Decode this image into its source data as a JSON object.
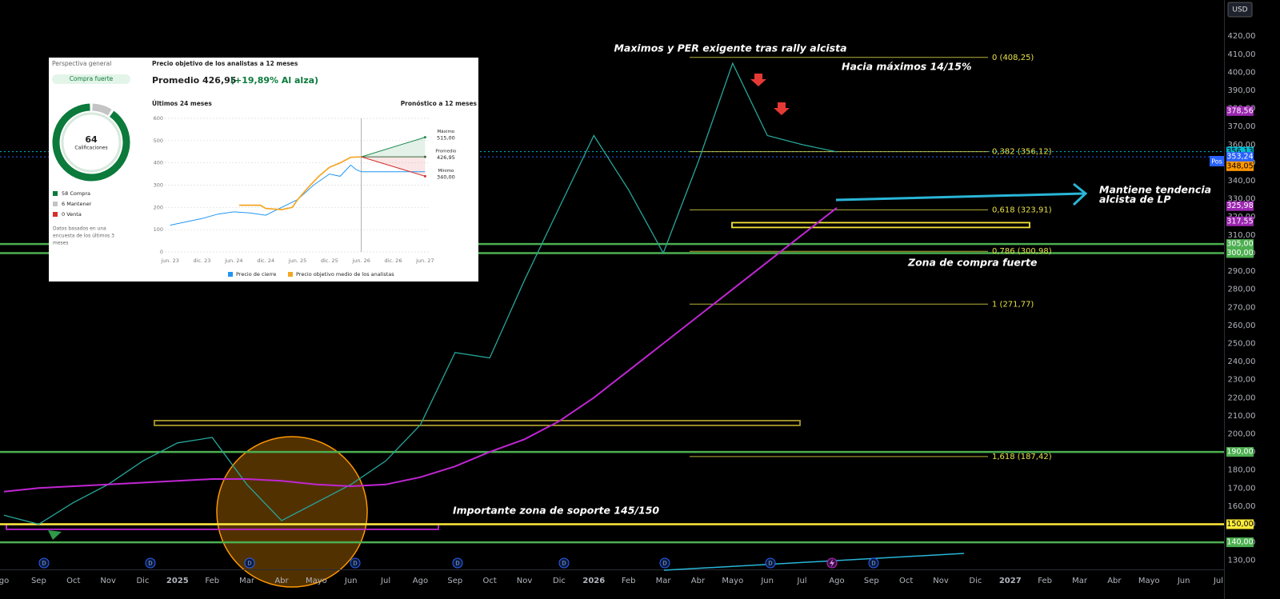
{
  "chart_data": [
    {
      "type": "line",
      "categories": [
        "go",
        "Sep",
        "Oct",
        "Nov",
        "Dic",
        "2025",
        "Feb",
        "Mar",
        "Abr",
        "Mayo",
        "Jun",
        "Jul",
        "Ago",
        "Sep",
        "Oct",
        "Nov",
        "Dic",
        "2026",
        "Feb",
        "Mar",
        "Abr",
        "Mayo",
        "Jun",
        "Jul",
        "Ago",
        "Sep",
        "Oct",
        "Nov",
        "Dic",
        "2027",
        "Feb",
        "Mar",
        "Abr",
        "Mayo",
        "Jun",
        "Jul"
      ],
      "series": [
        {
          "color": "#26a69a",
          "values": [
            155,
            150,
            162,
            172,
            185,
            195,
            198,
            172,
            152,
            162,
            172,
            185,
            205,
            245,
            242,
            285,
            325,
            365,
            335,
            300,
            350,
            405,
            365,
            360,
            356,
            null,
            null,
            null,
            null,
            null,
            null,
            null,
            null,
            null,
            null,
            null
          ]
        },
        {
          "color": "#c026d3",
          "values": [
            168,
            170,
            171,
            172,
            173,
            174,
            175,
            175,
            174,
            172,
            171,
            172,
            176,
            182,
            190,
            197,
            207,
            220,
            235,
            250,
            265,
            280,
            295,
            310,
            325,
            null,
            null,
            null,
            null,
            null,
            null,
            null,
            null,
            null,
            null,
            null
          ]
        }
      ],
      "ylim": [
        125,
        440
      ],
      "yticks": [
        {
          "value": 130,
          "label": "130,00"
        },
        {
          "value": 140,
          "label": "140,00"
        },
        {
          "value": 150,
          "label": "150,00"
        },
        {
          "value": 160,
          "label": "160,00"
        },
        {
          "value": 170,
          "label": "170,00"
        },
        {
          "value": 180,
          "label": "180,00"
        },
        {
          "value": 190,
          "label": "190,00"
        },
        {
          "value": 200,
          "label": "200,00"
        },
        {
          "value": 210,
          "label": "210,00"
        },
        {
          "value": 220,
          "label": "220,00"
        },
        {
          "value": 230,
          "label": "230,00"
        },
        {
          "value": 240,
          "label": "240,00"
        },
        {
          "value": 250,
          "label": "250,00"
        },
        {
          "value": 260,
          "label": "260,00"
        },
        {
          "value": 270,
          "label": "270,00"
        },
        {
          "value": 280,
          "label": "280,00"
        },
        {
          "value": 290,
          "label": "290,00"
        },
        {
          "value": 300,
          "label": "300,00"
        },
        {
          "value": 310,
          "label": "310,00"
        },
        {
          "value": 320,
          "label": "320,00"
        },
        {
          "value": 330,
          "label": "330,00"
        },
        {
          "value": 340,
          "label": "340,00"
        },
        {
          "value": 350,
          "label": "350,00"
        },
        {
          "value": 360,
          "label": "360,00"
        },
        {
          "value": 370,
          "label": "370,00"
        },
        {
          "value": 380,
          "label": "380,00"
        },
        {
          "value": 390,
          "label": "390,00"
        },
        {
          "value": 400,
          "label": "400,00"
        },
        {
          "value": 410,
          "label": "410,00"
        },
        {
          "value": 420,
          "label": "420,00"
        }
      ],
      "grid": false,
      "zones": [
        {
          "value": 206,
          "color": "#a89a2c"
        },
        {
          "value": 148.5,
          "color": "#c026d3"
        },
        {
          "value": 315.5,
          "color": "#f5e63a"
        }
      ],
      "fib": [
        {
          "value": 408.25,
          "label": "0 (408,25)"
        },
        {
          "value": 356.12,
          "label": "0,382 (356,12)"
        },
        {
          "value": 323.91,
          "label": "0,618 (323,91)"
        },
        {
          "value": 300.98,
          "label": "0,786 (300,98)"
        },
        {
          "value": 271.77,
          "label": "1 (271,77)"
        },
        {
          "value": 187.42,
          "label": "1,618 (187,42)"
        }
      ],
      "fib_color": "#e8e04a",
      "tags": [
        {
          "value": 378.56,
          "label": "378,56",
          "color": "#9c27b0",
          "text_color": "#ffffff"
        },
        {
          "value": 356.13,
          "label": "356,13",
          "color": "#00bcd4",
          "text_color": "#000000",
          "line": "dotted"
        },
        {
          "value": 353.24,
          "label": "353,24",
          "color": "#2962ff",
          "text_color": "#ffffff",
          "line": "dotted"
        },
        {
          "value": 348.05,
          "label": "348,05",
          "color": "#ff9800",
          "text_color": "#000000"
        },
        {
          "value": 325.98,
          "label": "325,98",
          "color": "#9c27b0",
          "text_color": "#ffffff"
        },
        {
          "value": 317.55,
          "label": "317,55",
          "color": "#9c27b0",
          "text_color": "#ffffff"
        },
        {
          "value": 305,
          "label": "305,00",
          "color": "#4caf50",
          "text_color": "#ffffff",
          "line": "solid"
        },
        {
          "value": 300,
          "label": "300,00",
          "color": "#4caf50",
          "text_color": "#ffffff",
          "line": "solid"
        },
        {
          "value": 190,
          "label": "190,00",
          "color": "#4caf50",
          "text_color": "#ffffff",
          "line": "solid"
        },
        {
          "value": 150,
          "label": "150,00",
          "color": "#ffeb3b",
          "text_color": "#000000",
          "line": "solid"
        },
        {
          "value": 140,
          "label": "140,00",
          "color": "#4caf50",
          "text_color": "#ffffff",
          "line": "solid"
        }
      ],
      "annotations": [
        [
          "Maximos y PER exigente tras rally alcista"
        ],
        [
          "Hacia máximos 14/15%"
        ],
        [
          "Mantiene tendencia",
          "alcista de LP"
        ],
        [
          "Zona de compra fuerte"
        ],
        [
          "Importante zona de soporte 145/150"
        ]
      ]
    },
    {
      "type": "pie",
      "categories": [
        "Compra",
        "Mantener",
        "Venta"
      ],
      "values": [
        58,
        6,
        0
      ],
      "colors": [
        "#0b7a3b",
        "#c4c4c4",
        "#d32f2f"
      ]
    },
    {
      "type": "line",
      "xlim": [
        -1,
        49
      ],
      "xticks": [
        {
          "value": 0,
          "label": "jun. 23"
        },
        {
          "value": 6,
          "label": "dic. 23"
        },
        {
          "value": 12,
          "label": "jun. 24"
        },
        {
          "value": 18,
          "label": "dic. 24"
        },
        {
          "value": 24,
          "label": "jun. 25"
        },
        {
          "value": 30,
          "label": "dic. 25"
        },
        {
          "value": 36,
          "label": "jun. 26"
        },
        {
          "value": 42,
          "label": "dic. 26"
        },
        {
          "value": 48,
          "label": "jun. 27"
        }
      ],
      "ylim": [
        0,
        600
      ],
      "yticks": [
        0,
        100,
        200,
        300,
        400,
        500,
        600
      ],
      "grid": true,
      "series": [
        {
          "name": "Precio de cierre",
          "color": "#2196f3",
          "x": [
            0,
            3,
            6,
            9,
            12,
            15,
            18,
            21,
            24,
            27,
            30,
            32,
            34,
            35,
            36
          ],
          "values": [
            120,
            135,
            150,
            170,
            180,
            175,
            165,
            200,
            235,
            300,
            350,
            340,
            390,
            370,
            360
          ]
        },
        {
          "name": "Precio objetivo medio de los analistas",
          "color": "#f5a623",
          "x": [
            13,
            17,
            18,
            21,
            23,
            24,
            26,
            28,
            30,
            32,
            34,
            36
          ],
          "values": [
            210,
            210,
            195,
            190,
            200,
            235,
            290,
            340,
            380,
            400,
            425,
            427
          ]
        }
      ],
      "forecast_x": 48,
      "forecast": [
        {
          "label": "Máximo",
          "value": 515,
          "value_label": "515,00",
          "color": "#1b8a4c"
        },
        {
          "label": "Promedio",
          "value": 426.95,
          "value_label": "426,95",
          "color": "#3d6b3d"
        },
        {
          "label": "Mínimo",
          "value": 340,
          "value_label": "340,00",
          "color": "#d32f2f"
        }
      ]
    }
  ],
  "panel": {
    "overview": "Perspectiva general",
    "rating": "Compra fuerte",
    "total": 64,
    "total_label": "Calificaciones",
    "footnote": [
      "Datos basados en una",
      "encuesta de los últimos 3",
      "meses"
    ],
    "heading": "Precio objetivo de los analistas a 12 meses",
    "average": "Promedio 426,95",
    "change": "(+19,89% Al alza)",
    "past": "Últimos 24 meses",
    "future": "Pronóstico a 12 meses"
  },
  "toolbar": {
    "currency": "USD",
    "position": "Pos",
    "dividend": "D"
  }
}
